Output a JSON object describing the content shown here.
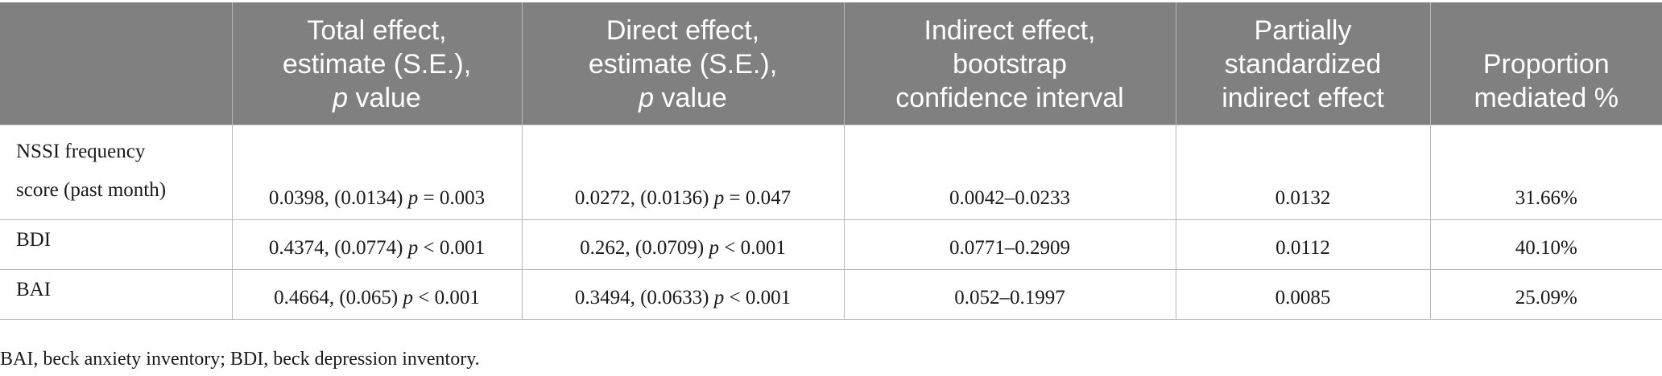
{
  "table": {
    "headers": [
      {
        "lines": [
          ""
        ]
      },
      {
        "lines": [
          "Total effect,",
          "estimate (S.E.),"
        ],
        "pline": {
          "p": "p",
          "rest": " value"
        }
      },
      {
        "lines": [
          "Direct effect,",
          "estimate (S.E.),"
        ],
        "pline": {
          "p": "p",
          "rest": " value"
        }
      },
      {
        "lines": [
          "Indirect effect,",
          "bootstrap",
          "confidence interval"
        ]
      },
      {
        "lines": [
          "Partially",
          "standardized",
          "indirect effect"
        ]
      },
      {
        "lines": [
          "Proportion",
          "mediated %"
        ]
      }
    ],
    "rows": [
      {
        "label_lines": [
          "NSSI frequency",
          "score (past month)"
        ],
        "total": {
          "est": "0.0398, (0.0134) ",
          "p": "p",
          "pval": " = 0.003"
        },
        "direct": {
          "est": "0.0272, (0.0136) ",
          "p": "p",
          "pval": " = 0.047"
        },
        "indirect_ci": "0.0042–0.0233",
        "partial_std": "0.0132",
        "proportion": "31.66%"
      },
      {
        "label_lines": [
          "BDI"
        ],
        "total": {
          "est": "0.4374, (0.0774) ",
          "p": "p",
          "pval": " < 0.001"
        },
        "direct": {
          "est": "0.262, (0.0709) ",
          "p": "p",
          "pval": " < 0.001"
        },
        "indirect_ci": "0.0771–0.2909",
        "partial_std": "0.0112",
        "proportion": "40.10%"
      },
      {
        "label_lines": [
          "BAI"
        ],
        "total": {
          "est": "0.4664, (0.065) ",
          "p": "p",
          "pval": " < 0.001"
        },
        "direct": {
          "est": "0.3494, (0.0633) ",
          "p": "p",
          "pval": " < 0.001"
        },
        "indirect_ci": "0.052–0.1997",
        "partial_std": "0.0085",
        "proportion": "25.09%"
      }
    ]
  },
  "footnote": "BAI, beck anxiety inventory; BDI, beck depression inventory."
}
